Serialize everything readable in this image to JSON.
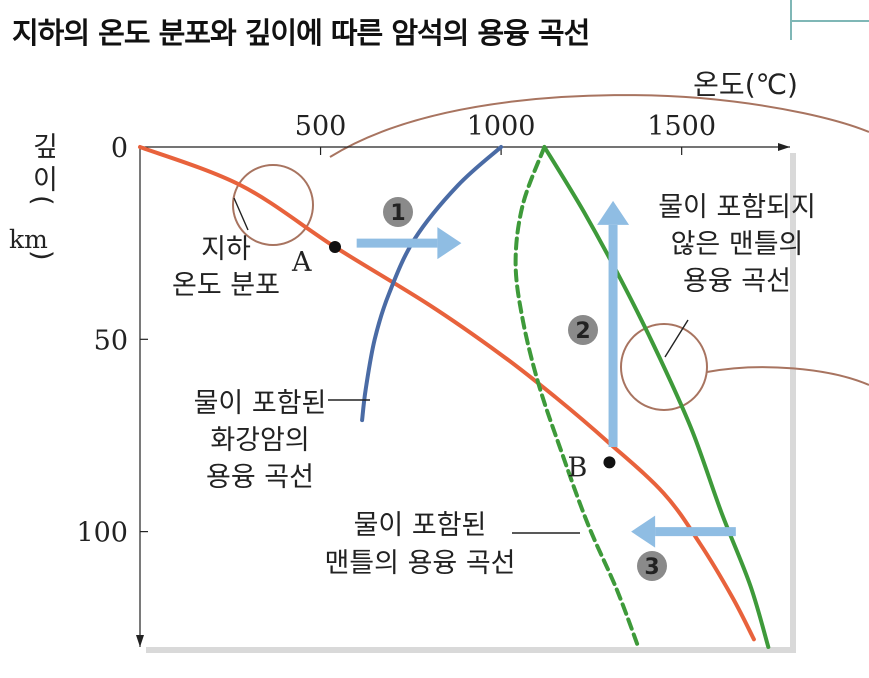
{
  "title": "지하의 온도 분포와 깊이에 따른 암석의 용융 곡선",
  "chart_data": {
    "type": "line",
    "xlabel": "온도(℃)",
    "ylabel": [
      "깊",
      "이",
      "(",
      "km",
      ")"
    ],
    "xlim": [
      0,
      1800
    ],
    "ylim": [
      0,
      130
    ],
    "x_ticks": [
      500,
      1000,
      1500
    ],
    "y_ticks": [
      0,
      50,
      100
    ],
    "colors": {
      "geotherm": "#e8623c",
      "wet_granite": "#4a6ba5",
      "wet_mantle": "#3e9a3a",
      "dry_mantle": "#3e9a3a",
      "arrow": "#8fbde3",
      "callout": "#a87460"
    },
    "series": [
      {
        "name": "지하 온도 분포",
        "key": "geotherm",
        "points": [
          [
            0,
            0
          ],
          [
            280,
            10
          ],
          [
            540,
            26
          ],
          [
            800,
            41
          ],
          [
            1000,
            54
          ],
          [
            1150,
            65
          ],
          [
            1300,
            77
          ],
          [
            1450,
            90
          ],
          [
            1550,
            103
          ],
          [
            1640,
            117
          ],
          [
            1700,
            128
          ]
        ]
      },
      {
        "name": "물이 포함된 화강암의 용융 곡선",
        "key": "wet_granite",
        "points": [
          [
            1000,
            0
          ],
          [
            880,
            10
          ],
          [
            760,
            24
          ],
          [
            690,
            38
          ],
          [
            650,
            50
          ],
          [
            625,
            63
          ],
          [
            615,
            71
          ]
        ]
      },
      {
        "name": "물이 포함된 맨틀의 용융 곡선",
        "key": "wet_mantle",
        "dashed": true,
        "points": [
          [
            1120,
            0
          ],
          [
            1060,
            15
          ],
          [
            1040,
            30
          ],
          [
            1060,
            45
          ],
          [
            1105,
            62
          ],
          [
            1170,
            80
          ],
          [
            1240,
            98
          ],
          [
            1320,
            115
          ],
          [
            1380,
            130
          ]
        ]
      },
      {
        "name": "물이 포함되지 않은 맨틀의 용융 곡선",
        "key": "dry_mantle",
        "points": [
          [
            1120,
            0
          ],
          [
            1230,
            17
          ],
          [
            1340,
            36
          ],
          [
            1440,
            55
          ],
          [
            1530,
            74
          ],
          [
            1610,
            95
          ],
          [
            1690,
            114
          ],
          [
            1740,
            130
          ]
        ]
      }
    ],
    "points": [
      {
        "label": "A",
        "x": 540,
        "y": 26
      },
      {
        "label": "B",
        "x": 1300,
        "y": 82
      }
    ],
    "annotations": {
      "geotherm": [
        "지하",
        "온도 분포"
      ],
      "wet_granite": [
        "물이 포함된",
        "화강암의",
        "용융 곡선"
      ],
      "wet_mantle": [
        "물이 포함된",
        "맨틀의 용융 곡선"
      ],
      "dry_mantle": [
        "물이 포함되지",
        "않은 맨틀의",
        "용융 곡선"
      ]
    },
    "steps": [
      {
        "label": "❶",
        "from": [
          600,
          25
        ],
        "to": [
          890,
          25
        ]
      },
      {
        "label": "❷",
        "from": [
          1310,
          78
        ],
        "to": [
          1310,
          14
        ]
      },
      {
        "label": "❸",
        "from": [
          1650,
          100
        ],
        "to": [
          1360,
          100
        ]
      }
    ]
  }
}
